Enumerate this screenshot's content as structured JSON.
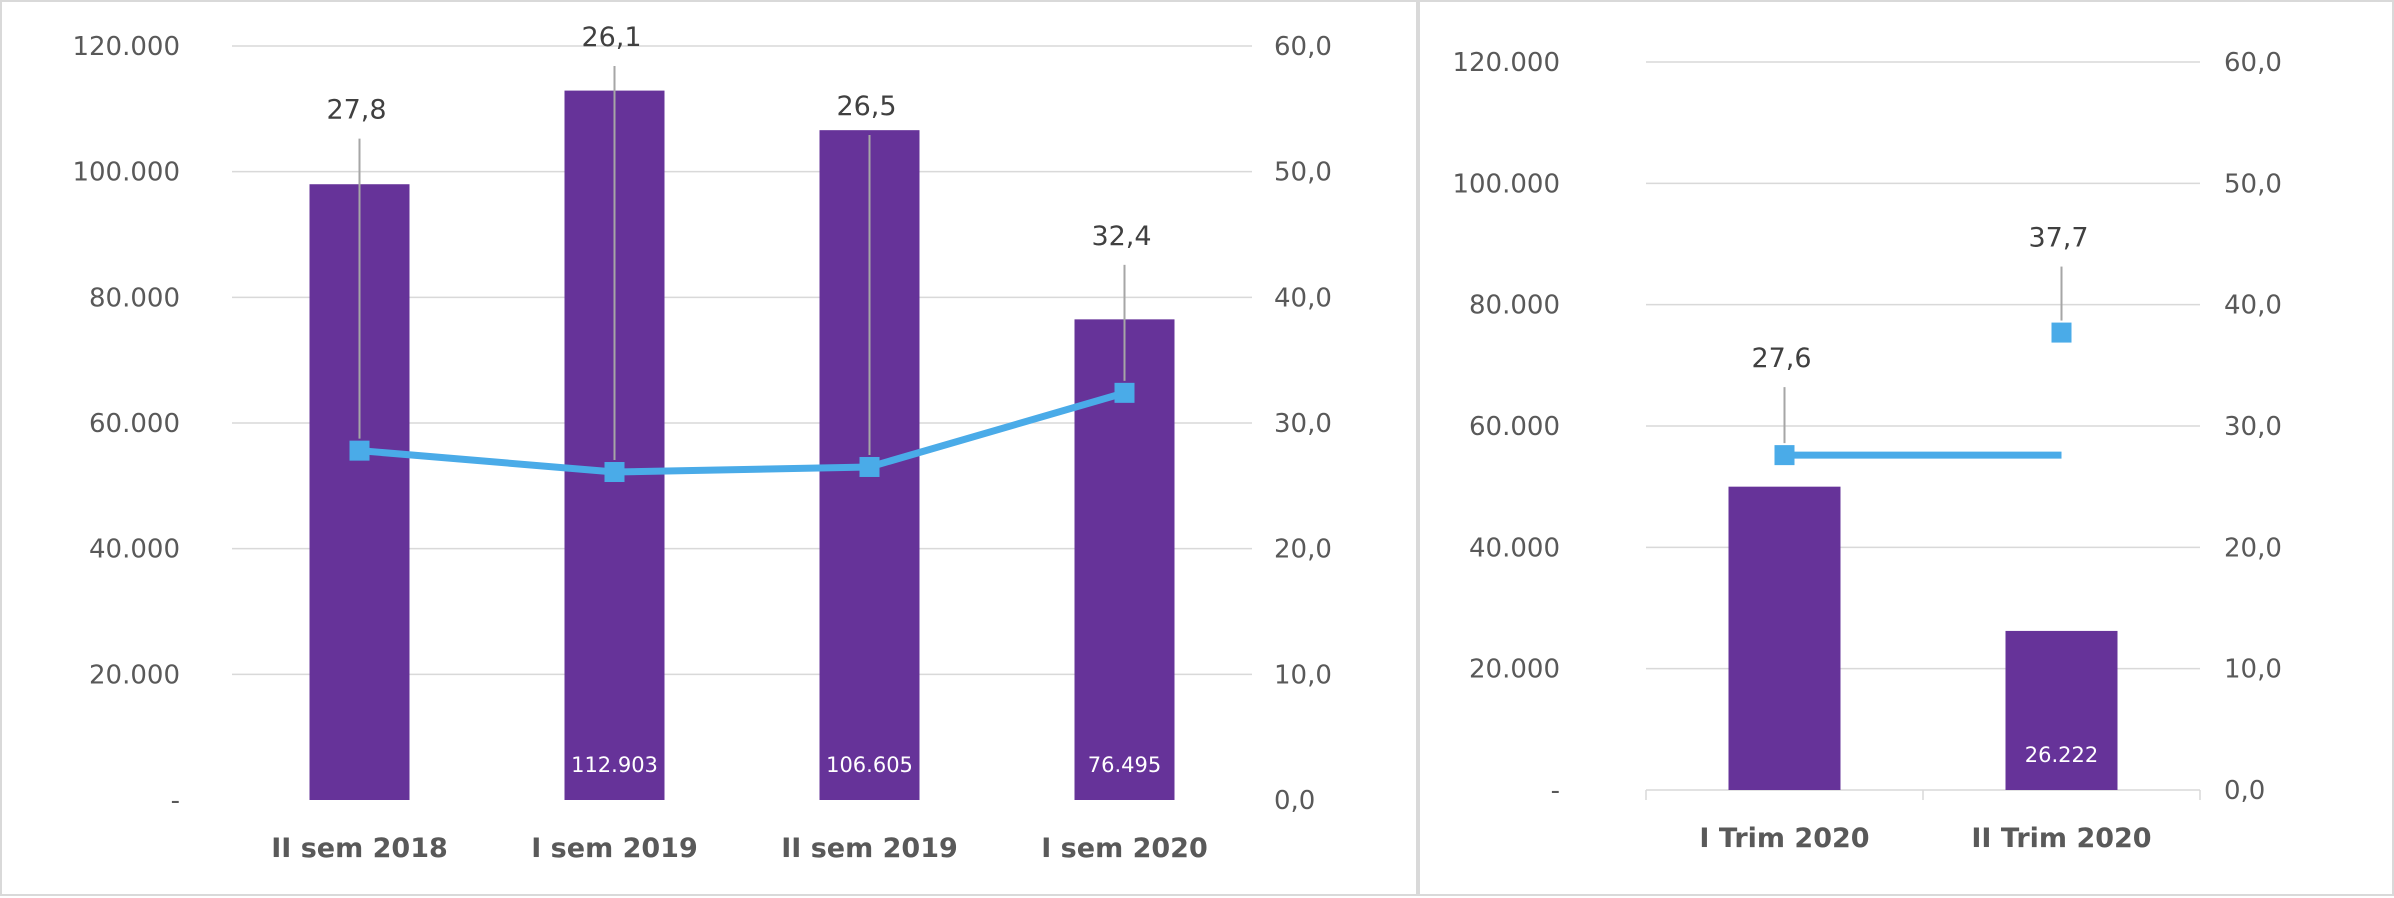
{
  "chart_data": [
    {
      "type": "bar",
      "categories": [
        "II sem  2018",
        "I sem  2019",
        "II sem  2019",
        "I sem  2020"
      ],
      "series": [
        {
          "type": "bar",
          "axis": "left",
          "values": [
            98000,
            112903,
            106605,
            76495
          ],
          "value_labels": [
            "",
            "112.903",
            "106.605",
            "76.495"
          ],
          "color": "#663399"
        },
        {
          "type": "line",
          "axis": "right",
          "values": [
            27.8,
            26.1,
            26.5,
            32.4
          ],
          "value_labels": [
            "27,8",
            "26,1",
            "26,5",
            "32,4"
          ],
          "color": "#4aabe8"
        }
      ],
      "ylim": [
        0,
        120000
      ],
      "y2lim": [
        0,
        60
      ],
      "y_ticks": [
        "-",
        "20.000",
        "40.000",
        "60.000",
        "80.000",
        "100.000",
        "120.000"
      ],
      "y2_ticks": [
        "0,0",
        "10,0",
        "20,0",
        "30,0",
        "40,0",
        "50,0",
        "60,0"
      ],
      "grid": true
    },
    {
      "type": "bar",
      "categories": [
        "I Trim  2020",
        "II Trim  2020"
      ],
      "series": [
        {
          "type": "bar",
          "axis": "left",
          "values": [
            50000,
            26222
          ],
          "value_labels": [
            "",
            "26.222"
          ],
          "color": "#663399"
        },
        {
          "type": "line",
          "axis": "right",
          "values": [
            27.6,
            27.6
          ],
          "value_labels": [
            "27,6",
            ""
          ],
          "color": "#4aabe8"
        },
        {
          "type": "scatter",
          "axis": "right",
          "values": [
            null,
            37.7
          ],
          "value_labels": [
            "",
            "37,7"
          ],
          "color": "#4aabe8"
        }
      ],
      "ylim": [
        0,
        120000
      ],
      "y2lim": [
        0,
        60
      ],
      "y_ticks": [
        "-",
        "20.000",
        "40.000",
        "60.000",
        "80.000",
        "100.000",
        "120.000"
      ],
      "y2_ticks": [
        "0,0",
        "10,0",
        "20,0",
        "30,0",
        "40,0",
        "50,0",
        "60,0"
      ],
      "grid": true
    }
  ]
}
